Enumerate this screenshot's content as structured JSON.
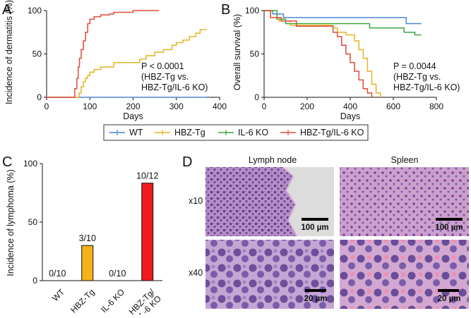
{
  "figure": {
    "panels": {
      "A": "A",
      "B": "B",
      "C": "C",
      "D": "D"
    },
    "legend": {
      "items": [
        {
          "label": "WT",
          "color": "#4a86d4"
        },
        {
          "label": "HBZ-Tg",
          "color": "#e6b422"
        },
        {
          "label": "IL-6 KO",
          "color": "#3aa640"
        },
        {
          "label": "HBZ-Tg/IL-6 KO",
          "color": "#e04a3a"
        }
      ]
    },
    "histology": {
      "columns": [
        "Lymph node",
        "Spleen"
      ],
      "rows": [
        "x10",
        "x40"
      ],
      "scale_bars": [
        "100 µm",
        "100 µm",
        "20 µm",
        "20 µm"
      ]
    }
  },
  "chart_data": [
    {
      "type": "line",
      "panel": "A",
      "title": "",
      "xlabel": "Days",
      "ylabel": "Incidence of dermatitis (%)",
      "xlim": [
        0,
        400
      ],
      "ylim": [
        0,
        100
      ],
      "xticks": [
        0,
        100,
        200,
        300,
        400
      ],
      "yticks": [
        0,
        50,
        100
      ],
      "annotation": [
        "P < 0.0001",
        "(HBZ-Tg vs.",
        "HBZ-Tg/IL-6 KO)"
      ],
      "series": [
        {
          "name": "WT",
          "color": "#4a86d4",
          "x": [
            0,
            370
          ],
          "y": [
            0,
            0
          ]
        },
        {
          "name": "HBZ-Tg",
          "color": "#e6b422",
          "x": [
            0,
            70,
            75,
            80,
            85,
            90,
            95,
            100,
            110,
            125,
            155,
            200,
            215,
            230,
            250,
            270,
            290,
            300,
            315,
            330,
            345,
            355,
            370
          ],
          "y": [
            0,
            0,
            5,
            12,
            18,
            22,
            25,
            29,
            32,
            35,
            40,
            40,
            44,
            48,
            52,
            55,
            60,
            63,
            66,
            70,
            74,
            78,
            78
          ]
        },
        {
          "name": "HBZ-Tg/IL-6 KO",
          "color": "#e04a3a",
          "x": [
            0,
            60,
            65,
            70,
            73,
            76,
            80,
            85,
            90,
            95,
            100,
            110,
            125,
            145,
            155,
            175,
            200,
            260
          ],
          "y": [
            0,
            0,
            10,
            22,
            35,
            45,
            55,
            65,
            75,
            85,
            90,
            93,
            95,
            96,
            98,
            98,
            100,
            100
          ]
        }
      ]
    },
    {
      "type": "line",
      "panel": "B",
      "title": "",
      "xlabel": "Days",
      "ylabel": "Overall survival (%)",
      "xlim": [
        0,
        800
      ],
      "ylim": [
        0,
        100
      ],
      "xticks": [
        0,
        200,
        400,
        600,
        800
      ],
      "yticks": [
        0,
        50,
        100
      ],
      "annotation": [
        "P = 0.0044",
        "(HBZ-Tg vs.",
        "HBZ-Tg/IL-6 KO)"
      ],
      "series": [
        {
          "name": "WT",
          "color": "#4a86d4",
          "x": [
            0,
            40,
            90,
            660,
            730
          ],
          "y": [
            100,
            96,
            92,
            85,
            85
          ]
        },
        {
          "name": "IL-6 KO",
          "color": "#3aa640",
          "x": [
            0,
            60,
            100,
            330,
            490,
            650,
            700,
            730
          ],
          "y": [
            100,
            90,
            85,
            85,
            80,
            75,
            72,
            72
          ]
        },
        {
          "name": "HBZ-Tg",
          "color": "#e6b422",
          "x": [
            0,
            30,
            70,
            120,
            320,
            340,
            380,
            420,
            440,
            460,
            480,
            500,
            520,
            540
          ],
          "y": [
            100,
            92,
            88,
            83,
            80,
            75,
            72,
            65,
            55,
            45,
            30,
            15,
            5,
            0
          ]
        },
        {
          "name": "HBZ-Tg/IL-6 KO",
          "color": "#e04a3a",
          "x": [
            0,
            30,
            80,
            150,
            320,
            340,
            360,
            380,
            400,
            420,
            440,
            460,
            480,
            500
          ],
          "y": [
            100,
            92,
            88,
            82,
            75,
            70,
            60,
            50,
            40,
            30,
            20,
            10,
            5,
            0
          ]
        }
      ]
    },
    {
      "type": "bar",
      "panel": "C",
      "title": "",
      "xlabel": "",
      "ylabel": "Incidence of lymphoma (%)",
      "ylim": [
        0,
        100
      ],
      "yticks": [
        0,
        50,
        100
      ],
      "categories": [
        "WT",
        "HBZ-Tg",
        "IL-6 KO",
        "HBZ-Tg/\nIL-6 KO"
      ],
      "values": [
        0,
        30,
        0,
        83.3
      ],
      "labels": [
        "0/10",
        "3/10",
        "0/10",
        "10/12"
      ],
      "colors": [
        "#ffffff",
        "#f5b21a",
        "#ffffff",
        "#ee1c1c"
      ]
    }
  ]
}
